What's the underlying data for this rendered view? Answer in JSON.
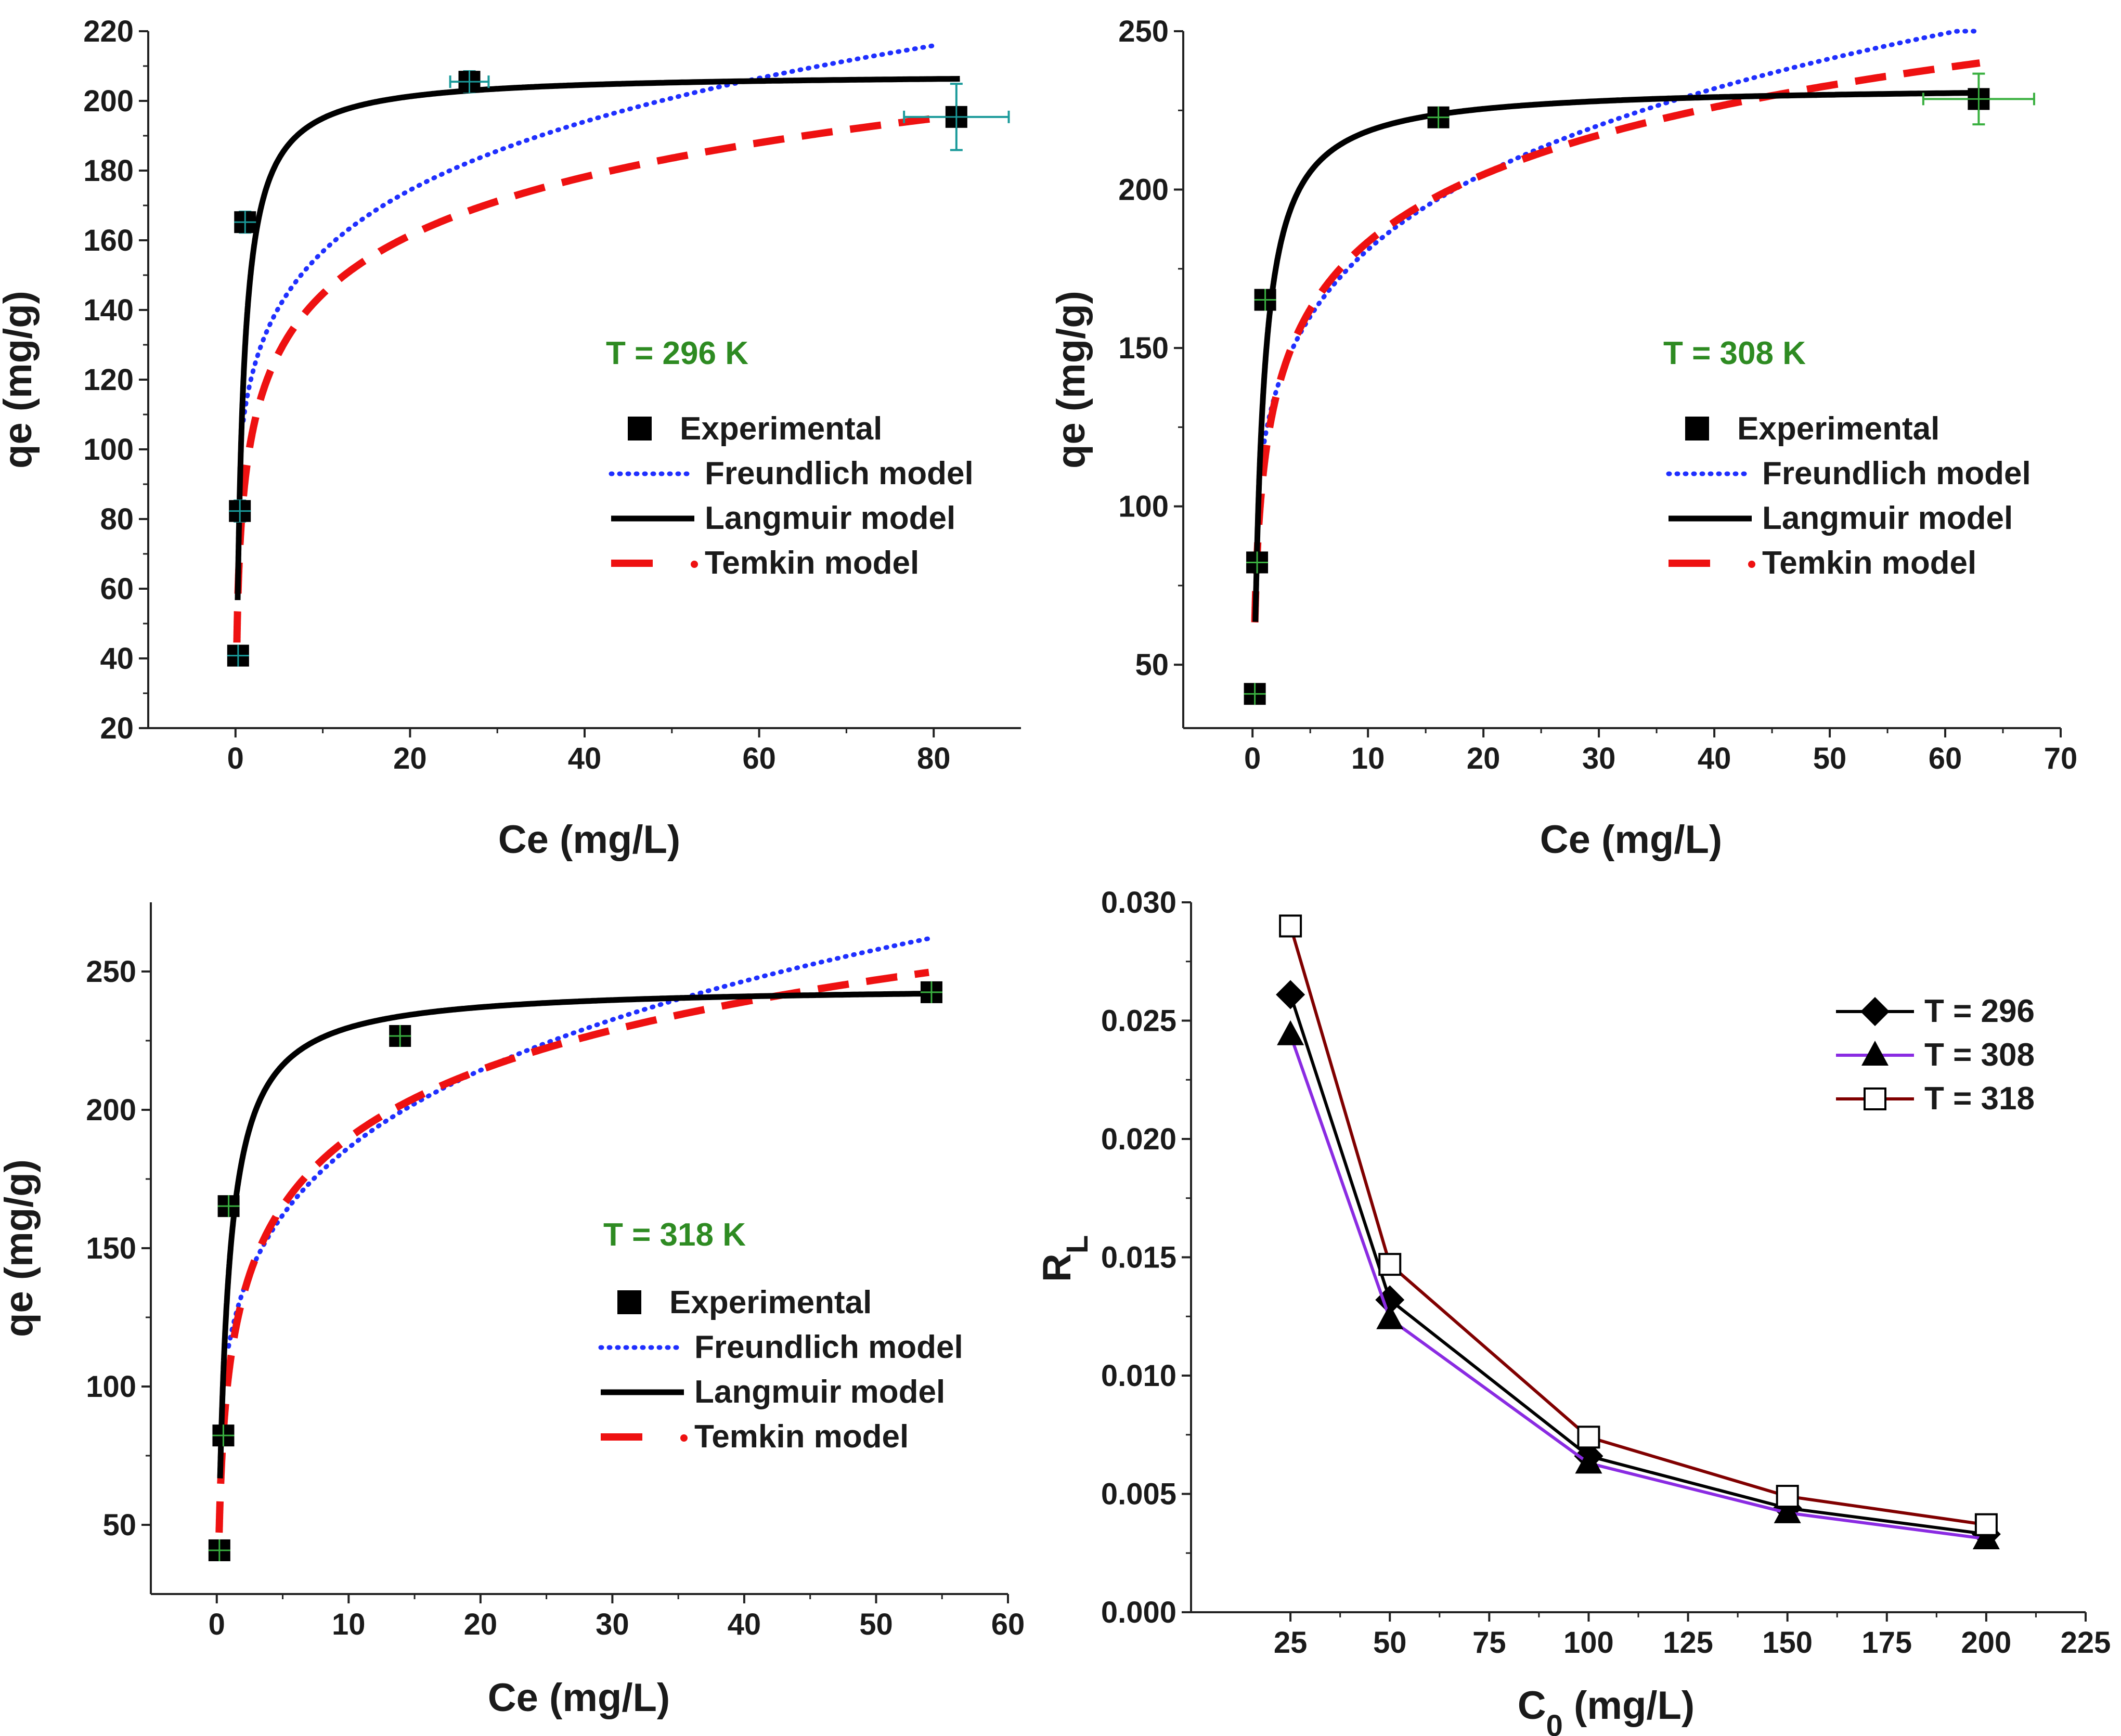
{
  "figure": {
    "legend_labels": {
      "experimental": "Experimental",
      "freundlich": "Freundlich model",
      "langmuir": "Langmuir model",
      "temkin": "Temkin model"
    },
    "colors": {
      "experimental": "#000000",
      "freundlich": "#1f2fff",
      "langmuir": "#000000",
      "temkin": "#ee1111",
      "temp_label": "#2e8b22",
      "error_296": "#1a9a9a",
      "error_308": "#3ab040",
      "rl_296": "#000000",
      "rl_308": "#8a2be2",
      "rl_318": "#800000"
    }
  },
  "chart_data": [
    {
      "id": "p296",
      "type": "scatter",
      "title": "",
      "temp_label": "T = 296 K",
      "xlabel": "Ce (mg/L)",
      "ylabel": "qe (mg/g)",
      "xlim": [
        -10,
        90
      ],
      "ylim": [
        20,
        220
      ],
      "xticks": [
        0,
        20,
        40,
        60,
        80
      ],
      "yticks": [
        20,
        40,
        60,
        80,
        100,
        120,
        140,
        160,
        180,
        200,
        220
      ],
      "experimental": {
        "x": [
          0.3,
          0.5,
          1.1,
          26.8,
          82.6
        ],
        "y": [
          40.8,
          82.3,
          165.2,
          205.5,
          195.4
        ],
        "xerr": [
          0.8,
          0.8,
          0.8,
          2.2,
          6.0
        ],
        "yerr": [
          2.5,
          3,
          3,
          3,
          9.5
        ]
      },
      "models": {
        "langmuir": {
          "qmax": 208,
          "KL": 1.5,
          "xrange": [
            0.25,
            83
          ]
        },
        "freundlich": {
          "KF": 110,
          "n": 6.5,
          "xrange": [
            0.9,
            80
          ]
        },
        "temkin": {
          "A": 39.4,
          "B": 24.2,
          "xrange": [
            0.16,
            80
          ]
        }
      }
    },
    {
      "id": "p308",
      "type": "scatter",
      "title": "",
      "temp_label": "T = 308 K",
      "xlabel": "Ce (mg/L)",
      "ylabel": "qe (mg/g)",
      "xlim": [
        -6,
        70
      ],
      "ylim": [
        30,
        250
      ],
      "xticks": [
        0,
        10,
        20,
        30,
        40,
        50,
        60,
        70
      ],
      "yticks": [
        50,
        100,
        150,
        200,
        250
      ],
      "experimental": {
        "x": [
          0.2,
          0.4,
          1.1,
          16.1,
          62.9
        ],
        "y": [
          40.8,
          82.3,
          165.2,
          222.8,
          228.6
        ],
        "xerr": [
          0.5,
          0.5,
          0.5,
          0.5,
          4.8
        ],
        "yerr": [
          2.5,
          3,
          3,
          3,
          8
        ]
      },
      "models": {
        "langmuir": {
          "qmax": 233,
          "KL": 1.5,
          "xrange": [
            0.25,
            63
          ]
        },
        "freundlich": {
          "KF": 120,
          "n": 5.6,
          "xrange": [
            0.9,
            63
          ]
        },
        "temkin": {
          "A": 39.4,
          "B": 30.7,
          "xrange": [
            0.2,
            63
          ]
        }
      }
    },
    {
      "id": "p318",
      "type": "scatter",
      "title": "",
      "temp_label": "T = 318 K",
      "xlabel": "Ce (mg/L)",
      "ylabel": "qe (mg/g)",
      "xlim": [
        -5,
        60
      ],
      "ylim": [
        25,
        275
      ],
      "xticks": [
        0,
        10,
        20,
        30,
        40,
        50,
        60
      ],
      "yticks": [
        50,
        100,
        150,
        200,
        250
      ],
      "experimental": {
        "x": [
          0.2,
          0.5,
          0.9,
          13.9,
          54.2
        ],
        "y": [
          40.8,
          82.3,
          165.2,
          226.7,
          242.5
        ],
        "xerr": [
          0.4,
          0.4,
          0.4,
          0.6,
          0.6
        ],
        "yerr": [
          3,
          3,
          3,
          3,
          3
        ]
      },
      "models": {
        "langmuir": {
          "qmax": 245,
          "KL": 1.5,
          "xrange": [
            0.25,
            54
          ]
        },
        "freundlich": {
          "KF": 117,
          "n": 4.95,
          "xrange": [
            0.9,
            54
          ]
        },
        "temkin": {
          "A": 21.0,
          "B": 35.5,
          "xrange": [
            0.18,
            54
          ]
        }
      }
    },
    {
      "id": "rl",
      "type": "line",
      "title": "",
      "xlabel": "C0 (mg/L)",
      "ylabel": "RL",
      "xlim": [
        0,
        225
      ],
      "ylim": [
        0,
        0.03
      ],
      "xticks": [
        25,
        50,
        75,
        100,
        125,
        150,
        175,
        200,
        225
      ],
      "ytick_labels": [
        "0.000",
        "0.005",
        "0.010",
        "0.015",
        "0.020",
        "0.025",
        "0.030"
      ],
      "x": [
        25,
        50,
        100,
        150,
        200
      ],
      "series": [
        {
          "name": "T = 296",
          "marker": "diamond",
          "values": [
            0.0261,
            0.0132,
            0.0066,
            0.0044,
            0.0033
          ]
        },
        {
          "name": "T = 308",
          "marker": "triangle",
          "values": [
            0.0244,
            0.0124,
            0.0063,
            0.0042,
            0.0031
          ]
        },
        {
          "name": "T = 318",
          "marker": "open-square",
          "values": [
            0.029,
            0.0147,
            0.0074,
            0.0049,
            0.0037
          ]
        }
      ]
    }
  ]
}
